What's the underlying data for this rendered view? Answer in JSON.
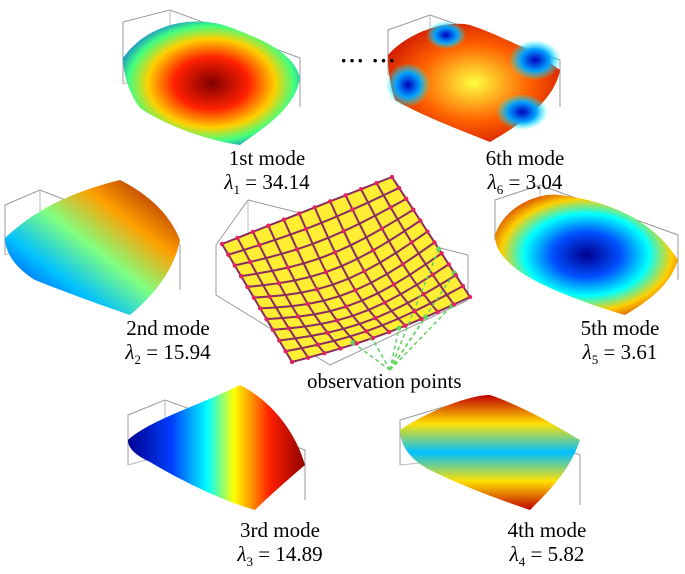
{
  "modes": [
    {
      "id": "m1",
      "label": "1st mode",
      "lambda_sub": "1",
      "lambda_value": "34.14",
      "pattern": "dome"
    },
    {
      "id": "m2",
      "label": "2nd mode",
      "lambda_sub": "2",
      "lambda_value": "15.94",
      "pattern": "tilt"
    },
    {
      "id": "m3",
      "label": "3rd mode",
      "lambda_sub": "3",
      "lambda_value": "14.89",
      "pattern": "wave-x"
    },
    {
      "id": "m4",
      "label": "4th mode",
      "lambda_sub": "4",
      "lambda_value": "5.82",
      "pattern": "wave-y"
    },
    {
      "id": "m5",
      "label": "5th mode",
      "lambda_sub": "5",
      "lambda_value": "3.61",
      "pattern": "bowl"
    },
    {
      "id": "m6",
      "label": "6th mode",
      "lambda_sub": "6",
      "lambda_value": "3.04",
      "pattern": "saddle"
    }
  ],
  "lambda_symbol": "λ",
  "ellipsis": "··· ···",
  "center": {
    "label": "observation points",
    "mesh_color": "#ffee33",
    "line_color": "#8a2b5f",
    "point_color": "#e0245e",
    "arrow_color": "#5fd35f"
  },
  "colormap": [
    "#0000ff",
    "#00a0ff",
    "#00ffff",
    "#80ff80",
    "#ffff00",
    "#ff8000",
    "#ff0000",
    "#800000"
  ]
}
